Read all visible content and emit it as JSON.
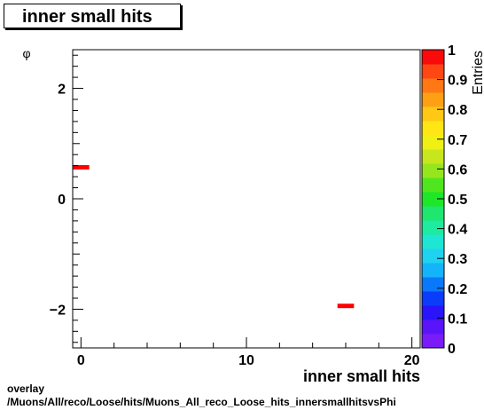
{
  "chart_data": {
    "type": "heatmap",
    "title": "inner small hits",
    "xlabel": "inner small hits",
    "ylabel": "φ",
    "zlabel": "Entries",
    "xlim": [
      -0.5,
      20.5
    ],
    "ylim": [
      -2.7,
      2.7
    ],
    "zlim": [
      0,
      1
    ],
    "x_ticks": [
      0,
      10,
      20
    ],
    "y_ticks": [
      -2,
      0,
      2
    ],
    "z_ticks": [
      "0",
      "0.1",
      "0.2",
      "0.3",
      "0.4",
      "0.5",
      "0.6",
      "0.7",
      "0.8",
      "0.9",
      "1"
    ],
    "bins": [
      {
        "x0": -0.5,
        "x1": 0.5,
        "y0": 0.53,
        "y1": 0.61,
        "z": 1
      },
      {
        "x0": 15.5,
        "x1": 16.5,
        "y0": -1.98,
        "y1": -1.9,
        "z": 1
      }
    ],
    "palette": [
      "#7a1cfa",
      "#5a14fa",
      "#2a14fa",
      "#0a3cfa",
      "#0a78fa",
      "#14b4fa",
      "#1ed2f0",
      "#1ee6d2",
      "#1eeaa0",
      "#1ee66e",
      "#1ee628",
      "#50e61e",
      "#96e61e",
      "#c8e61e",
      "#f0f014",
      "#ffe614",
      "#ffc814",
      "#ffa014",
      "#ff7814",
      "#ff4614",
      "#fa0a0a"
    ],
    "bin_color": "#ff0000"
  },
  "footer": {
    "line1": "overlay",
    "line2": "/Muons/All/reco/Loose/hits/Muons_All_reco_Loose_hits_innersmallhitsvsPhi"
  }
}
